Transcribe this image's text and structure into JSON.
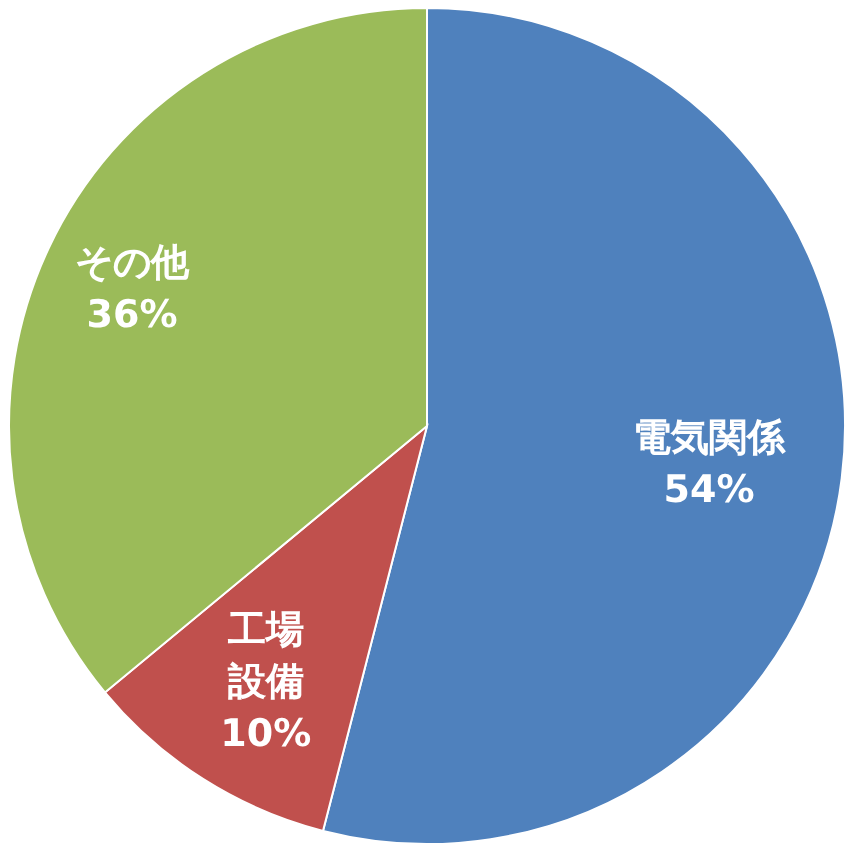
{
  "chart_data": {
    "type": "pie",
    "categories": [
      "電気関係",
      "工場設備",
      "その他"
    ],
    "values": [
      54,
      10,
      36
    ],
    "colors": [
      "#4f81bd",
      "#c0504d",
      "#9bbb59"
    ],
    "value_labels": [
      "54%",
      "10%",
      "36%"
    ],
    "legend": false
  }
}
